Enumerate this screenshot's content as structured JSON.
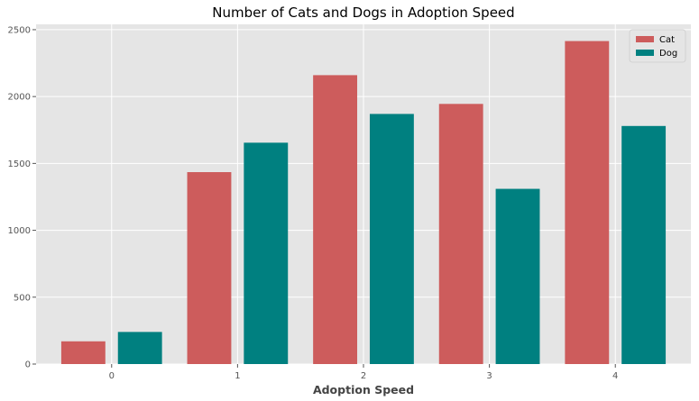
{
  "chart_data": {
    "type": "bar",
    "title": "Number of Cats and Dogs in Adoption Speed",
    "xlabel": "Adoption Speed",
    "ylabel": "",
    "categories": [
      "0",
      "1",
      "2",
      "3",
      "4"
    ],
    "series": [
      {
        "name": "Cat",
        "color": "#cd5c5c",
        "values": [
          170,
          1435,
          2160,
          1945,
          2415
        ]
      },
      {
        "name": "Dog",
        "color": "#008080",
        "values": [
          240,
          1655,
          1870,
          1310,
          1780
        ]
      }
    ],
    "yticks": [
      0,
      500,
      1000,
      1500,
      2000,
      2500
    ],
    "ylim": [
      0,
      2540
    ],
    "xlim": [
      -0.6,
      4.6
    ],
    "grid": true,
    "legend_position": "top-right",
    "background_color": "#e5e5e5",
    "grid_color": "#ffffff"
  }
}
